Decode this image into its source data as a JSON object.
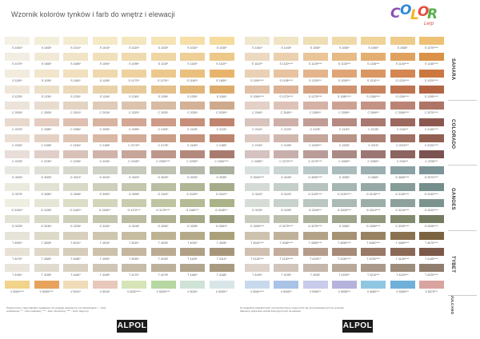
{
  "title": "Wzornik kolorów tynków i farb do wnętrz i elewacji",
  "logo": {
    "letters": [
      "C",
      "O",
      "L",
      "O",
      "R"
    ],
    "colors": [
      "#8b4fb5",
      "#2f8bd6",
      "#f2b51d",
      "#e54c3c",
      "#56b04a"
    ],
    "sub": "Lerp"
  },
  "groups": [
    {
      "name": "SAHARA",
      "rows": [
        0,
        1,
        2,
        3
      ]
    },
    {
      "name": "COLORADO",
      "rows": [
        4,
        5,
        6,
        7
      ]
    },
    {
      "name": "GANGES",
      "rows": [
        8,
        9,
        10,
        11
      ]
    },
    {
      "name": "TYBET",
      "rows": [
        12,
        13,
        14,
        15
      ]
    },
    {
      "name": "VULCANO",
      "rows": [
        16
      ]
    }
  ],
  "rows": [
    {
      "codes": [
        "S 1000*",
        "S 1005*",
        "S 1010*",
        "S 1015*",
        "S 1020*",
        "S 1025*",
        "S 1030*",
        "S 1035*",
        "S 1040*",
        "S 1045*",
        "S 1050*",
        "S 1055*",
        "S 1060*",
        "S 1065*",
        "S 1070****"
      ],
      "colors": [
        "#f4f0e4",
        "#f3eed9",
        "#f4ecd0",
        "#f5e9c6",
        "#f4e6be",
        "#f5e3b3",
        "#f6dfa8",
        "#f5db9c",
        "#f0e7cf",
        "#f0e4c4",
        "#efdfb6",
        "#f0d9a8",
        "#f0d39a",
        "#efcb88",
        "#edc074"
      ]
    },
    {
      "codes": [
        "S 1075*",
        "S 1080*",
        "S 1085*",
        "S 1090*",
        "S 1095*",
        "S 1100*",
        "S 1105*",
        "S 1110**",
        "S 1115**",
        "S 1120****",
        "S 1125****",
        "S 1130***",
        "S 1135***",
        "S 1140****",
        "S 1145****"
      ],
      "colors": [
        "#f2ede2",
        "#f1e9d5",
        "#f1e4c8",
        "#f0e0bb",
        "#efdab0",
        "#efd6a4",
        "#eecf95",
        "#edc886",
        "#ecd9c0",
        "#ebd0ae",
        "#eac59a",
        "#e7bb86",
        "#e3ae72",
        "#e0a15e",
        "#d99247"
      ]
    },
    {
      "codes": [
        "S 1150*",
        "S 1155*",
        "S 1160*",
        "S 1165*",
        "S 1170**",
        "S 1175**",
        "S 1180**",
        "S 1185**",
        "S 1190****",
        "S 1195****",
        "S 1200***",
        "S 1205***",
        "S 1210***",
        "S 1215****",
        "S 1220****"
      ],
      "colors": [
        "#f3ebdc",
        "#f2e5cc",
        "#f1dfbd",
        "#f0d8ae",
        "#efd19f",
        "#edc88e",
        "#ebbf7d",
        "#e8b46c",
        "#ead0b4",
        "#e7c3a0",
        "#e4b58c",
        "#dfa576",
        "#da9663",
        "#d48752",
        "#cc7740"
      ]
    },
    {
      "codes": [
        "S 1225*",
        "S 1230*",
        "S 1235*",
        "S 1240*",
        "S 1245*",
        "S 1250*",
        "S 1255*",
        "S 1260*",
        "S 1265****",
        "S 1270****",
        "S 1275****",
        "S 1280****",
        "S 1285****",
        "S 1290****",
        "S 1295****"
      ],
      "colors": [
        "#efe6d7",
        "#ede0c8",
        "#ebd9b9",
        "#e9d2aa",
        "#e7ca9a",
        "#e4c08a",
        "#e1b67a",
        "#ddab6a",
        "#e1c0a5",
        "#dcb194",
        "#d6a281",
        "#cf936f",
        "#c7845e",
        "#be744f",
        "#b36542"
      ]
    },
    {
      "codes": [
        "C 2000*",
        "C 2005*",
        "C 2010*",
        "C 2015*",
        "C 2020*",
        "C 2025*",
        "C 2030*",
        "C 2035**",
        "C 2040*",
        "C 2045**",
        "C 2050**",
        "C 2055**",
        "C 2060**",
        "C 2065****",
        "C 2070****"
      ],
      "colors": [
        "#ece3da",
        "#e8dccf",
        "#e4d3c3",
        "#e0cbb8",
        "#dcc3ad",
        "#d8bba3",
        "#d3b298",
        "#cea98c",
        "#e4d0c7",
        "#dec2b7",
        "#d6b2a6",
        "#cda295",
        "#c49385",
        "#ba8375",
        "#ae7466"
      ]
    },
    {
      "codes": [
        "C 2075*",
        "C 2080*",
        "C 2085*",
        "C 2090*",
        "C 2095*",
        "C 2100*",
        "C 2105*",
        "C 2110*",
        "C 2115*",
        "C 2120*",
        "C 2125*",
        "C 2130*",
        "C 2135*",
        "C 2140**",
        "C 2145****"
      ],
      "colors": [
        "#e9d8ce",
        "#e4ccbf",
        "#dfbfb0",
        "#d9b3a2",
        "#d3a794",
        "#cd9b87",
        "#c78f7a",
        "#c0836e",
        "#d9c3bd",
        "#ceb0a9",
        "#c29d95",
        "#b68a82",
        "#a97870",
        "#9b675f",
        "#8c574f"
      ]
    },
    {
      "codes": [
        "C 2150*",
        "C 2155*",
        "C 2160*",
        "C 2165*",
        "C 2170**",
        "C 2175*",
        "C 2180*",
        "C 2185*",
        "C 2190*",
        "C 2195*",
        "C 2200***",
        "C 2205*",
        "C 2210*",
        "C 2215***",
        "C 2220****"
      ],
      "colors": [
        "#ebdfd4",
        "#e5d2c4",
        "#dfc5b4",
        "#d9b8a5",
        "#d2ab96",
        "#cb9e88",
        "#c4917b",
        "#bc846e",
        "#dcc9c2",
        "#d1b7ae",
        "#c6a59a",
        "#ba9387",
        "#ad8174",
        "#a07062",
        "#925f52"
      ]
    },
    {
      "codes": [
        "C 2225*",
        "C 2230*",
        "C 2235*",
        "C 2240*",
        "C 2245**",
        "C 2250****",
        "C 2255**",
        "C 2260****",
        "C 2265**",
        "C 2270****",
        "C 2275****",
        "C 2280**",
        "C 2285**",
        "C 2290**",
        "C 2295***"
      ],
      "colors": [
        "#e8ddd8",
        "#e0cfc8",
        "#d8c1b8",
        "#d0b3a9",
        "#c7a59a",
        "#be978b",
        "#b4897d",
        "#a97b6f",
        "#d5c2c0",
        "#c7afac",
        "#b99c98",
        "#ab8985",
        "#9c7672",
        "#8c6460",
        "#7c5350"
      ]
    },
    {
      "codes": [
        "G 3000*",
        "G 3005*",
        "G 3010*",
        "G 3015*",
        "G 3020*",
        "G 3025*",
        "G 3030*",
        "G 3035*",
        "G 3040****",
        "G 3045*",
        "G 3050****",
        "G 3055*",
        "G 3060*",
        "G 3065****",
        "G 3070****"
      ],
      "colors": [
        "#e7e8e1",
        "#dfe1d8",
        "#d7d9cf",
        "#cfd2c6",
        "#c6cabc",
        "#bdc2b3",
        "#b4b9a9",
        "#aab19f",
        "#d7e0df",
        "#c9d4d4",
        "#bac8c9",
        "#abbcbd",
        "#9bafb1",
        "#8ba2a5",
        "#7a9498"
      ]
    },
    {
      "codes": [
        "G 3075*",
        "G 3080*",
        "G 3085*",
        "G 3090*",
        "G 3095*",
        "G 3100*",
        "G 3105**",
        "G 3110**",
        "G 3115*",
        "G 3120*",
        "G 3125****",
        "G 3130****",
        "G 3135****",
        "G 3140****",
        "G 3145****"
      ],
      "colors": [
        "#eaeadf",
        "#e1e2d3",
        "#d8d9c7",
        "#ced0bb",
        "#c4c7ae",
        "#babea2",
        "#b0b596",
        "#a6ac8a",
        "#d4dbd6",
        "#c5cfca",
        "#b6c3be",
        "#a6b6b2",
        "#96a9a6",
        "#859c99",
        "#748e8c"
      ]
    },
    {
      "codes": [
        "G 3150**",
        "G 3155*",
        "G 3160**",
        "G 3165**",
        "G 3170***",
        "G 3175****",
        "G 3180***",
        "G 3185***",
        "G 3190*",
        "G 3195*",
        "G 3200***",
        "G 3205****",
        "G 3210****",
        "G 3215****",
        "G 3220****"
      ],
      "colors": [
        "#eeeee1",
        "#e5e6d5",
        "#dcdec8",
        "#d3d6bb",
        "#c9cdae",
        "#bfc4a1",
        "#b5bb94",
        "#aab287",
        "#d6ddd7",
        "#c8d2cc",
        "#bac6c0",
        "#abbab4",
        "#9caea8",
        "#8ca19b",
        "#7c948e"
      ]
    },
    {
      "codes": [
        "G 3225*",
        "G 3230*",
        "G 3235*",
        "G 3240*",
        "G 3245*",
        "G 3250*",
        "G 3255*",
        "G 3260**",
        "G 3265****",
        "G 3270****",
        "G 3275****",
        "G 3280*",
        "G 3285****",
        "G 3290****",
        "G 3295****"
      ],
      "colors": [
        "#e3e3d5",
        "#d9d9c8",
        "#cfd0bb",
        "#c5c6ae",
        "#bbbca1",
        "#b1b294",
        "#a6a888",
        "#9b9e7c",
        "#c9ccbc",
        "#bbbfac",
        "#adb29c",
        "#9fa58c",
        "#91987d",
        "#828a6e",
        "#737c60"
      ]
    },
    {
      "codes": [
        "T 4000*",
        "T 4005*",
        "T 4010*",
        "T 4015*",
        "T 4020*",
        "T 4025*",
        "T 4030*",
        "T 4035*",
        "T 4040****",
        "T 4045****",
        "T 4050****",
        "T 4055****",
        "T 4060****",
        "T 4065****",
        "T 4070****"
      ],
      "colors": [
        "#e6e3d8",
        "#dedaca",
        "#d6d0bc",
        "#cec6ae",
        "#c6bda1",
        "#bdb394",
        "#b4aa87",
        "#aaa07a",
        "#cdc2ad",
        "#c0b29a",
        "#b3a287",
        "#a69274",
        "#988262",
        "#8a7250",
        "#7c6340"
      ]
    },
    {
      "codes": [
        "T 4075*",
        "T 4080*",
        "T 4085*",
        "T 4090*",
        "T 4095*",
        "T 4100*",
        "T 4105*",
        "T 4110*",
        "T 4115****",
        "T 4120****",
        "T 4125**",
        "T 4130****",
        "T 4135****",
        "T 4140****",
        "T 4145****"
      ],
      "colors": [
        "#e8e2d6",
        "#dfd7c8",
        "#d6ccba",
        "#cdc1ac",
        "#c4b69f",
        "#baab92",
        "#b0a085",
        "#a69578",
        "#d1bfb0",
        "#c3ad9d",
        "#b59c8a",
        "#a78a78",
        "#997967",
        "#8a6856",
        "#7b5847"
      ]
    },
    {
      "codes": [
        "T 4150*",
        "T 4155*",
        "T 4160*",
        "T 4165*",
        "T 4170*",
        "T 4175*",
        "T 4180*",
        "T 4185*",
        "T 4190*",
        "T 4195*",
        "T 4200*",
        "T 4205**",
        "T 4210***",
        "T 4215***",
        "T 4220****"
      ],
      "colors": [
        "#eae5dc",
        "#e1dbcf",
        "#d8d1c2",
        "#cfc6b5",
        "#c6bca8",
        "#bdb19b",
        "#b3a68e",
        "#a99b81",
        "#ddd3cb",
        "#d1c5bb",
        "#c5b7ab",
        "#b8a99b",
        "#ab9a8b",
        "#9e8c7c",
        "#907d6d"
      ]
    },
    {
      "codes": [
        "V 5000****",
        "V 5005****",
        "V 5010*",
        "V 5015*",
        "V 5020****",
        "V 5025****",
        "V 5030*",
        "V 5035**",
        "V 5040****",
        "V 5045**",
        "V 5050**",
        "V 5055***",
        "V 5060***",
        "V 5065***",
        "V 5070***"
      ],
      "colors": [
        "#f1d38a",
        "#e7a25d",
        "#f0dcb8",
        "#e7c8bb",
        "#d6e4b8",
        "#b7d7a2",
        "#cfe2d6",
        "#d9e6e9",
        "#c8d9ec",
        "#a9c3e6",
        "#c9cbea",
        "#b5b2dc",
        "#8fc7e3",
        "#6fb0d9",
        "#d9a4a0"
      ]
    }
  ],
  "footnote_left": "Podane kolory mają charakter poglądowy. Do wyglądu elewacji nie ma zastosowania. * - kolor podstawowy; ** - kolor pastelowy; *** - kolor intensywny; **** - kolor nasycony",
  "footnote_right": "Ze względów poligraficznych rzeczywiste kolory mogą różnić się od przedstawionych we wzorniku. Zalecamy wykonanie próbek kolorystycznych na elewacji.",
  "brand": "ALPOL"
}
